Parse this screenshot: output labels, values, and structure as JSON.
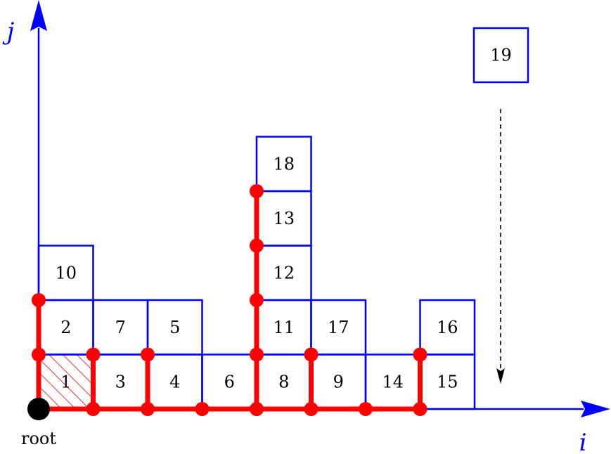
{
  "axes": {
    "x_label": "i",
    "y_label": "j"
  },
  "root_label": "root",
  "cells": [
    {
      "label": "1",
      "col": 0,
      "row": 0,
      "hatched": true
    },
    {
      "label": "2",
      "col": 0,
      "row": 1
    },
    {
      "label": "10",
      "col": 0,
      "row": 2
    },
    {
      "label": "3",
      "col": 1,
      "row": 0
    },
    {
      "label": "7",
      "col": 1,
      "row": 1
    },
    {
      "label": "4",
      "col": 2,
      "row": 0
    },
    {
      "label": "5",
      "col": 2,
      "row": 1
    },
    {
      "label": "6",
      "col": 3,
      "row": 0
    },
    {
      "label": "8",
      "col": 4,
      "row": 0
    },
    {
      "label": "11",
      "col": 4,
      "row": 1
    },
    {
      "label": "12",
      "col": 4,
      "row": 2
    },
    {
      "label": "13",
      "col": 4,
      "row": 3
    },
    {
      "label": "18",
      "col": 4,
      "row": 4
    },
    {
      "label": "9",
      "col": 5,
      "row": 0
    },
    {
      "label": "17",
      "col": 5,
      "row": 1
    },
    {
      "label": "14",
      "col": 6,
      "row": 0
    },
    {
      "label": "15",
      "col": 7,
      "row": 0
    },
    {
      "label": "16",
      "col": 7,
      "row": 1
    }
  ],
  "falling_cell": {
    "label": "19"
  },
  "tree_path": {
    "horizontal": [
      [
        0,
        0,
        7,
        0
      ]
    ],
    "vertical": [
      [
        0,
        0,
        0,
        2
      ],
      [
        1,
        0,
        1,
        1
      ],
      [
        2,
        0,
        2,
        1
      ],
      [
        4,
        0,
        4,
        4
      ],
      [
        5,
        0,
        5,
        1
      ],
      [
        7,
        0,
        7,
        1
      ]
    ],
    "nodes": [
      [
        1,
        0
      ],
      [
        2,
        0
      ],
      [
        3,
        0
      ],
      [
        4,
        0
      ],
      [
        5,
        0
      ],
      [
        6,
        0
      ],
      [
        7,
        0
      ],
      [
        0,
        1
      ],
      [
        0,
        2
      ],
      [
        1,
        1
      ],
      [
        2,
        1
      ],
      [
        4,
        1
      ],
      [
        4,
        2
      ],
      [
        4,
        3
      ],
      [
        4,
        4
      ],
      [
        5,
        1
      ],
      [
        7,
        1
      ]
    ]
  },
  "colors": {
    "grid": "#0000ff",
    "path": "#ff0000",
    "root": "#000000"
  }
}
